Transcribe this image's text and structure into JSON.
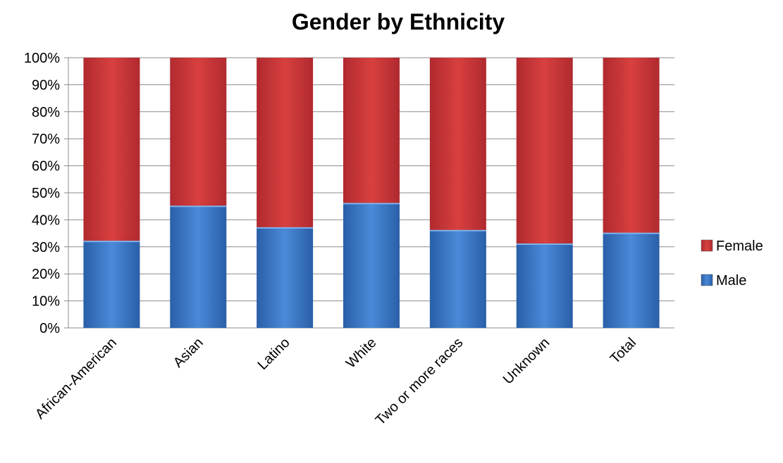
{
  "chart_data": {
    "type": "bar",
    "stacked": true,
    "percent_stacked": true,
    "title": "Gender by Ethnicity",
    "xlabel": "",
    "ylabel": "",
    "categories": [
      "African-American",
      "Asian",
      "Latino",
      "White",
      "Two or more races",
      "Unknown",
      "Total"
    ],
    "series": [
      {
        "name": "Male",
        "values": [
          32,
          45,
          37,
          46,
          36,
          31,
          35
        ],
        "color": "#3b78c8"
      },
      {
        "name": "Female",
        "values": [
          68,
          55,
          63,
          54,
          64,
          69,
          65
        ],
        "color": "#c8333b"
      }
    ],
    "ylim": [
      0,
      100
    ],
    "y_ticks": [
      "0%",
      "10%",
      "20%",
      "30%",
      "40%",
      "50%",
      "60%",
      "70%",
      "80%",
      "90%",
      "100%"
    ],
    "grid": true,
    "legend": {
      "position": "right",
      "entries": [
        "Female",
        "Male"
      ]
    }
  }
}
